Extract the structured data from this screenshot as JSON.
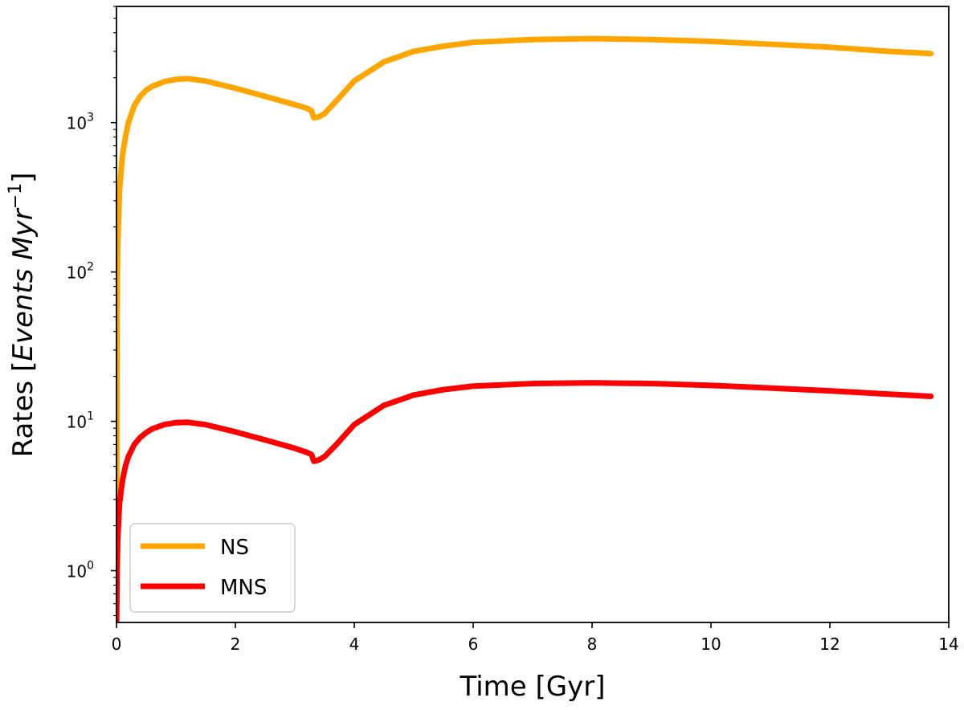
{
  "chart_data": {
    "type": "line",
    "xlabel": "Time [Gyr]",
    "ylabel_prefix": "Rates [",
    "ylabel_italic": "Events Myr",
    "ylabel_sup": "−1",
    "ylabel_suffix": "]",
    "xlim": [
      0,
      14
    ],
    "ylim": [
      0.45,
      6000
    ],
    "yscale": "log",
    "xticks": [
      0,
      2,
      4,
      6,
      8,
      10,
      12,
      14
    ],
    "xtick_labels": [
      "0",
      "2",
      "4",
      "6",
      "8",
      "10",
      "12",
      "14"
    ],
    "yticks": [
      1,
      10,
      100,
      1000
    ],
    "ytick_labels": [
      {
        "base": "10",
        "exp": "0"
      },
      {
        "base": "10",
        "exp": "1"
      },
      {
        "base": "10",
        "exp": "2"
      },
      {
        "base": "10",
        "exp": "3"
      }
    ],
    "grid": false,
    "legend_position": "lower-left",
    "series": [
      {
        "name": "NS",
        "color": "#ffa500",
        "x": [
          0.0,
          0.01,
          0.02,
          0.05,
          0.1,
          0.15,
          0.2,
          0.3,
          0.4,
          0.5,
          0.6,
          0.8,
          1.0,
          1.2,
          1.5,
          2.0,
          2.5,
          3.0,
          3.2,
          3.28,
          3.32,
          3.4,
          3.5,
          3.7,
          4.0,
          4.5,
          5.0,
          5.5,
          6.0,
          7.0,
          8.0,
          9.0,
          10.0,
          11.0,
          12.0,
          13.0,
          13.7
        ],
        "y": [
          0.5,
          50,
          150,
          350,
          600,
          800,
          1000,
          1300,
          1500,
          1650,
          1750,
          1880,
          1950,
          1970,
          1900,
          1700,
          1500,
          1320,
          1250,
          1200,
          1080,
          1090,
          1150,
          1400,
          1900,
          2550,
          3000,
          3250,
          3450,
          3600,
          3650,
          3600,
          3500,
          3350,
          3200,
          3000,
          2900
        ]
      },
      {
        "name": "MNS",
        "color": "#ff0000",
        "x": [
          0.0,
          0.01,
          0.02,
          0.05,
          0.1,
          0.15,
          0.2,
          0.3,
          0.4,
          0.5,
          0.6,
          0.8,
          1.0,
          1.2,
          1.5,
          2.0,
          2.5,
          3.0,
          3.2,
          3.28,
          3.32,
          3.4,
          3.5,
          3.7,
          4.0,
          4.5,
          5.0,
          5.5,
          6.0,
          7.0,
          8.0,
          9.0,
          10.0,
          11.0,
          12.0,
          13.0,
          13.7
        ],
        "y": [
          0.4,
          1.0,
          1.6,
          2.8,
          4.0,
          5.0,
          5.8,
          7.0,
          7.8,
          8.4,
          8.9,
          9.5,
          9.8,
          9.85,
          9.5,
          8.5,
          7.5,
          6.6,
          6.2,
          6.0,
          5.4,
          5.5,
          5.8,
          7.0,
          9.5,
          12.8,
          15.0,
          16.3,
          17.2,
          17.9,
          18.1,
          17.9,
          17.4,
          16.7,
          16.0,
          15.2,
          14.7
        ]
      }
    ]
  }
}
